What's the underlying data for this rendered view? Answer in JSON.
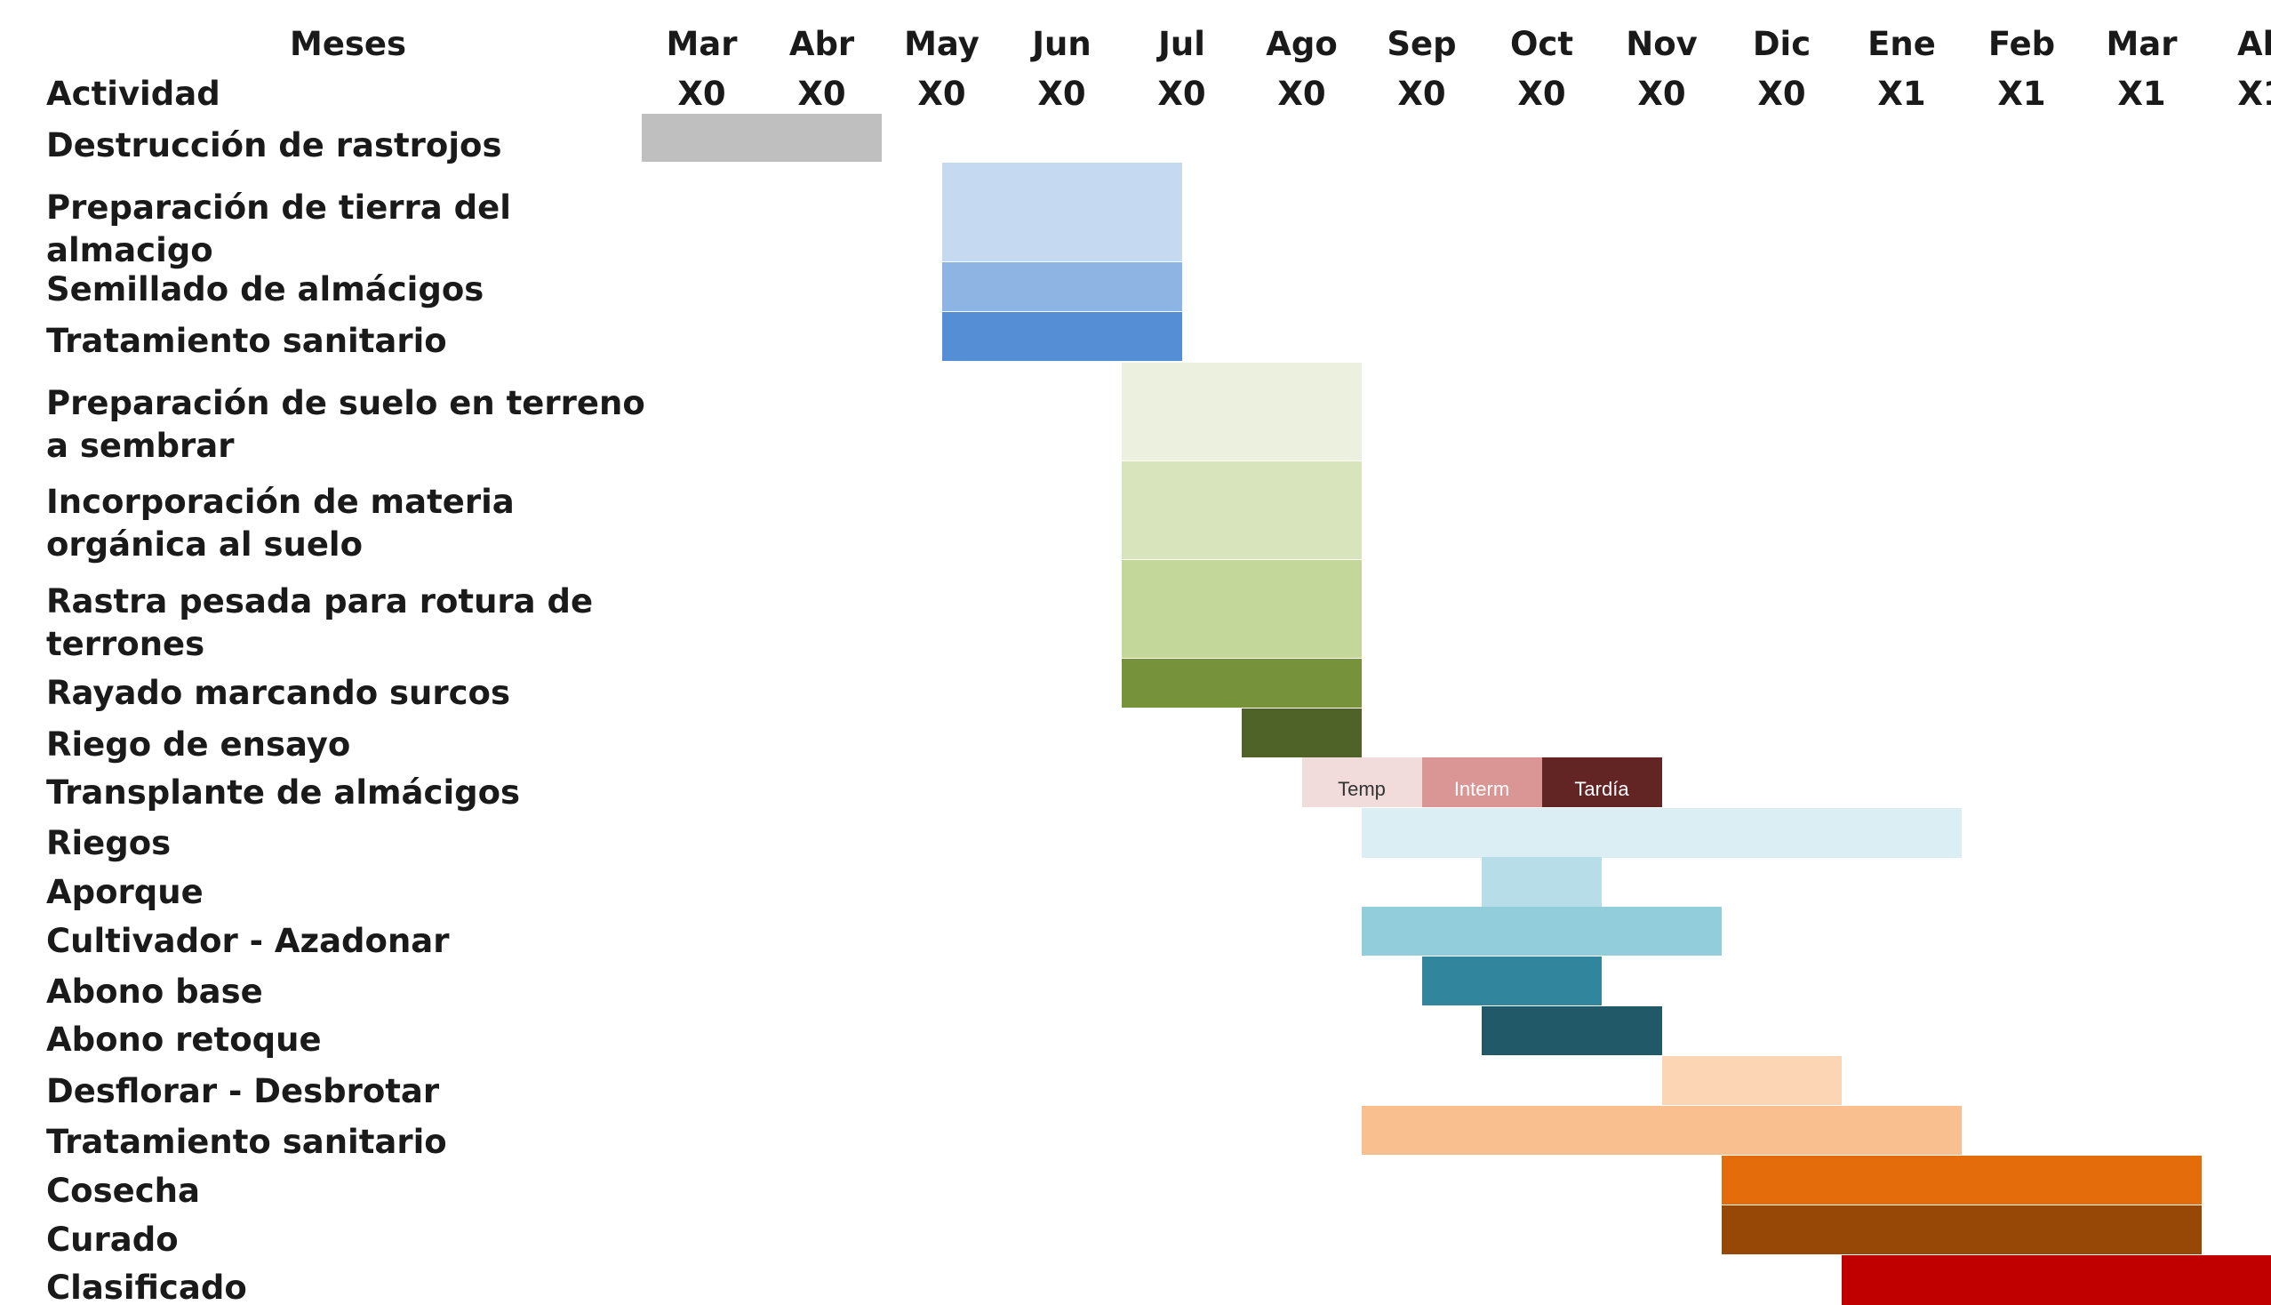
{
  "header": {
    "months_title": "Meses",
    "activity_title": "Actividad"
  },
  "chart_data": {
    "type": "gantt",
    "title": "",
    "months": [
      {
        "name": "Mar",
        "year": "X0"
      },
      {
        "name": "Abr",
        "year": "X0"
      },
      {
        "name": "May",
        "year": "X0"
      },
      {
        "name": "Jun",
        "year": "X0"
      },
      {
        "name": "Jul",
        "year": "X0"
      },
      {
        "name": "Ago",
        "year": "X0"
      },
      {
        "name": "Sep",
        "year": "X0"
      },
      {
        "name": "Oct",
        "year": "X0"
      },
      {
        "name": "Nov",
        "year": "X0"
      },
      {
        "name": "Dic",
        "year": "X0"
      },
      {
        "name": "Ene",
        "year": "X1"
      },
      {
        "name": "Feb",
        "year": "X1"
      },
      {
        "name": "Mar",
        "year": "X1"
      },
      {
        "name": "Ab",
        "year": "X1"
      }
    ],
    "activities": [
      {
        "label": "Destrucción de rastrojos",
        "segments": [
          {
            "start": 0,
            "end": 2,
            "color": "#bfbfbf"
          }
        ]
      },
      {
        "label": "Preparación de tierra del\nalmacigo",
        "segments": [
          {
            "start": 2.5,
            "end": 4.5,
            "color": "#c5d9f1"
          }
        ]
      },
      {
        "label": "Semillado  de almácigos",
        "segments": [
          {
            "start": 2.5,
            "end": 4.5,
            "color": "#8db4e2"
          }
        ]
      },
      {
        "label": "Tratamiento  sanitario",
        "segments": [
          {
            "start": 2.5,
            "end": 4.5,
            "color": "#558ed5"
          }
        ]
      },
      {
        "label": "Preparación de suelo en terreno\na sembrar",
        "segments": [
          {
            "start": 4,
            "end": 6,
            "color": "#ebf1de"
          }
        ]
      },
      {
        "label": "Incorporación  de materia\norgánica al suelo",
        "segments": [
          {
            "start": 4,
            "end": 6,
            "color": "#d7e4bc"
          }
        ]
      },
      {
        "label": "Rastra pesada para rotura de\nterrones",
        "segments": [
          {
            "start": 4,
            "end": 6,
            "color": "#c4d79b"
          }
        ]
      },
      {
        "label": "Rayado marcando  surcos",
        "segments": [
          {
            "start": 4,
            "end": 6,
            "color": "#76933c"
          }
        ]
      },
      {
        "label": "Riego  de ensayo",
        "segments": [
          {
            "start": 5,
            "end": 6,
            "color": "#4f6228"
          }
        ]
      },
      {
        "label": "Transplante  de almácigos",
        "segments": [
          {
            "start": 5.5,
            "end": 6.5,
            "color": "#f2dcdb",
            "text": "Temp",
            "text_color": "#333333"
          },
          {
            "start": 6.5,
            "end": 7.5,
            "color": "#da9694",
            "text": "Interm",
            "text_color": "#ffffff"
          },
          {
            "start": 7.5,
            "end": 8.5,
            "color": "#632523",
            "text": "Tardía",
            "text_color": "#ffffff"
          }
        ]
      },
      {
        "label": "Riegos",
        "segments": [
          {
            "start": 6,
            "end": 11,
            "color": "#daeef3"
          }
        ]
      },
      {
        "label": "Aporque",
        "segments": [
          {
            "start": 7,
            "end": 8,
            "color": "#b7dde8"
          }
        ]
      },
      {
        "label": "Cultivador  - Azadonar",
        "segments": [
          {
            "start": 6,
            "end": 9,
            "color": "#92cddc"
          }
        ]
      },
      {
        "label": "Abono base",
        "segments": [
          {
            "start": 6.5,
            "end": 8,
            "color": "#31859c"
          }
        ]
      },
      {
        "label": "Abono retoque",
        "segments": [
          {
            "start": 7,
            "end": 8.5,
            "color": "#215968"
          }
        ]
      },
      {
        "label": "Desflorar  - Desbrotar",
        "segments": [
          {
            "start": 8.5,
            "end": 10,
            "color": "#fcd5b4"
          }
        ]
      },
      {
        "label": "Tratamiento  sanitario",
        "segments": [
          {
            "start": 6,
            "end": 11,
            "color": "#fabf8f"
          }
        ]
      },
      {
        "label": "Cosecha",
        "segments": [
          {
            "start": 9,
            "end": 13,
            "color": "#e46c0a"
          }
        ]
      },
      {
        "label": "Curado",
        "segments": [
          {
            "start": 9,
            "end": 13,
            "color": "#974806"
          }
        ]
      },
      {
        "label": "Clasificado",
        "segments": [
          {
            "start": 10,
            "end": 14,
            "color": "#c00000"
          }
        ]
      }
    ]
  }
}
